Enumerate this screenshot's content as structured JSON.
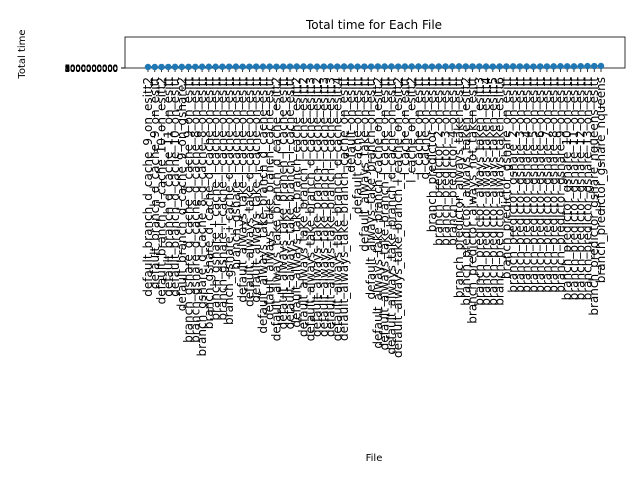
{
  "chart_data": {
    "type": "line",
    "title": "Total time for Each File",
    "xlabel": "File",
    "ylabel": "Total time",
    "ytick_labels": [
      "1000000000",
      "2000000000",
      "3000000000",
      "4000000000",
      "5000000000",
      "6000000000",
      "7000000000",
      "8000000000",
      "9000000000"
    ],
    "categories": [
      "default_branch_d_cache_9_on_esitt2",
      "default_branch_d_cache_9_on_esitt",
      "default_branch_d_cache_10_on_esitt2",
      "default_branch_d_cache_11_on_esitt",
      "default_branch_d_cache_10_on_esitt",
      "default_branch_d_cache_9_on_gshare2",
      "branch_gshare_d_cache_d_cache_9_on_esitt",
      "branch_gshare_d_cache_d_cache_8_on_esitt",
      "branch_gshare_d_cache_8_d_cache_8_on_esitt",
      "branch_gshare_d_cache_d_cache_on_esitt",
      "branch_gshare_l_cache_i_cache_on_esitt",
      "branch_gshare_l_cache_l_cache_on_esitt",
      "branch_gshare_i_cache_d_cache_on_esitt",
      "branch_gshare_i_cache_on_esitt",
      "default_always_take_i_cache_on_esitt",
      "default_always_take_d_cache_on_esitt",
      "default_always_take_l_cache_on_esitt",
      "default_always_take_branch_d_cache_esitt",
      "default_always_take_branch_cache_esitt",
      "default_always_take_branch_d_cache_esitt2",
      "default_always_take_branch_l_cache_esitt",
      "default_always_take_branch_i_cache_esitt",
      "default_always_take_branch_cache_esitt2",
      "default_always_take_branch_l_cache_esitt2",
      "default_always_take_branch_d_cache_esitt3",
      "default_always_take_branch_i_cache_esitt2",
      "default_always_take_branch_l_cache_esitt3",
      "default_always_take_branch_i_cache_esitt3",
      "default_always_take_branch_d_cache_esitt4",
      "default_always_take_branch_cache_on_esitt",
      "default_on_esitt",
      "default_cache_on_esitt",
      "default_always_take_on_esitt",
      "default_always_take_branch_on_esitt",
      "default_always_take_branch_cache_on_esitt2",
      "default_always_take_branch_l_cache_on_esitt",
      "default_always_take_branch_d_cache_on_esitt",
      "default_always_take_branch_l_cache_on_esitt2",
      "l_cache_on_esitt",
      "l_cache_on_esitt2",
      "i_cache_on_esitt",
      "d_cache_on_esitt",
      "branch_predictor_on_esitt",
      "branch_predictor_2_on_esitt",
      "branch_predictor_3_on_esitt",
      "branch_predictor_4_on_esitt",
      "branch_predictor_always_taken_esitt",
      "branch_predictor_always_taken_esitt2",
      "branch_predictor_always_not_taken_esitt",
      "branch_predictor_always_taken_esitt3",
      "branch_predictor_always_taken_esitt4",
      "branch_predictor_always_taken_esitt5",
      "branch_predictor_always_taken_esitt6",
      "branch_predictor_gshare_on_esitt",
      "branch_predictor_gshare_2_on_esitt",
      "branch_predictor_gshare_3_on_esitt",
      "branch_predictor_gshare_4_on_esitt",
      "branch_predictor_gshare_5_on_esitt",
      "branch_predictor_gshare_6_on_esitt",
      "branch_predictor_gshare_7_on_esitt",
      "branch_predictor_gshare_8_on_esitt",
      "branch_predictor_gshare_9_on_esitt",
      "branch_predictor_gshare_10_on_esitt",
      "branch_predictor_gshare_11_on_esitt",
      "branch_predictor_gshare_12_on_esitt",
      "branch_predictor_gshare_13_on_esitt",
      "branch_predictor_gshare_nqueens_esitt",
      "branch_predictor_gshare_nqueens"
    ],
    "values": [
      3.2,
      3.3,
      3.4,
      3.5,
      3.6,
      3.6,
      3.8,
      3.9,
      4.0,
      4.0,
      4.1,
      4.2,
      4.3,
      4.5,
      4.3,
      4.4,
      4.6,
      4.5,
      4.5,
      4.4,
      4.6,
      4.7,
      4.8,
      4.8,
      4.6,
      4.5,
      4.7,
      4.9,
      4.7,
      4.9,
      4.8,
      4.5,
      4.7,
      4.6,
      5.0,
      4.9,
      4.8,
      4.7,
      4.9,
      4.8,
      4.8,
      4.7,
      4.7,
      4.9,
      5.0,
      5.3,
      5.4,
      5.2,
      5.0,
      5.1,
      4.8,
      4.6,
      4.9,
      5.2,
      5.3,
      5.1,
      4.9,
      4.7,
      5.0,
      5.2,
      5.3,
      5.6,
      5.5,
      5.3,
      5.9,
      6.1,
      6.3,
      6.5
    ],
    "ylim": [
      0,
      100
    ],
    "grid": false,
    "legend": "none",
    "colors": {
      "series": "#1f77b4",
      "axis": "#000000",
      "background": "#ffffff"
    }
  }
}
